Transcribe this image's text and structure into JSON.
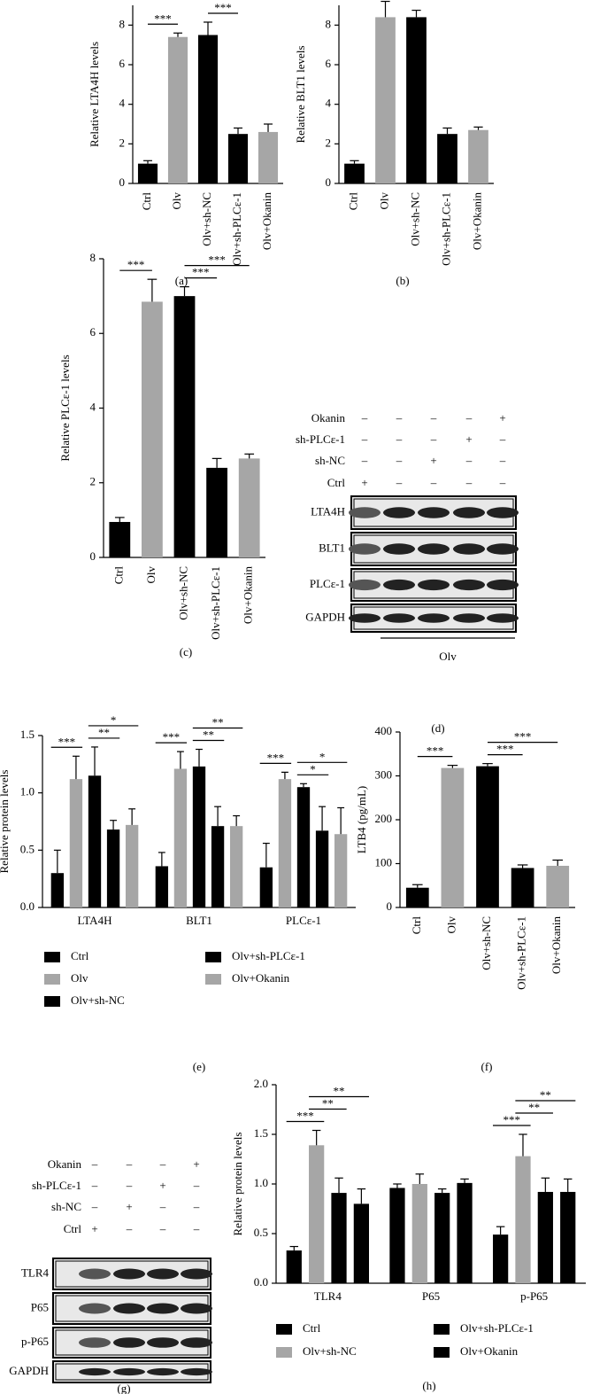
{
  "chart_data": [
    {
      "type": "bar",
      "panel": "(a)",
      "ylabel": "Relative LTA4H levels",
      "categories": [
        "Ctrl",
        "Olv",
        "Olv+sh-NC",
        "Olv+sh-PLCε-1",
        "Olv+Okanin"
      ],
      "values": [
        1.0,
        7.4,
        7.5,
        2.5,
        2.6
      ],
      "errors": [
        0.15,
        0.2,
        0.65,
        0.3,
        0.4
      ],
      "colors": [
        "#000000",
        "#a6a6a6",
        "#000000",
        "#000000",
        "#a6a6a6"
      ],
      "ylim": [
        0,
        9
      ],
      "yticks": [
        0,
        2,
        4,
        6,
        8
      ],
      "annotations": [
        {
          "text": "***",
          "between": [
            0,
            1
          ]
        },
        {
          "text": "***",
          "between": [
            2,
            3
          ]
        }
      ]
    },
    {
      "type": "bar",
      "panel": "(b)",
      "ylabel": "Relative BLT1 levels",
      "categories": [
        "Ctrl",
        "Olv",
        "Olv+sh-NC",
        "Olv+sh-PLCε-1",
        "Olv+Okanin"
      ],
      "values": [
        1.0,
        8.4,
        8.4,
        2.5,
        2.7
      ],
      "errors": [
        0.15,
        0.8,
        0.35,
        0.3,
        0.15
      ],
      "colors": [
        "#000000",
        "#a6a6a6",
        "#000000",
        "#000000",
        "#a6a6a6"
      ],
      "ylim": [
        0,
        9
      ],
      "yticks": [
        0,
        2,
        4,
        6,
        8
      ],
      "annotations": []
    },
    {
      "type": "bar",
      "panel": "(c)",
      "ylabel": "Relative PLCε-1 levels",
      "categories": [
        "Ctrl",
        "Olv",
        "Olv+sh-NC",
        "Olv+sh-PLCε-1",
        "Olv+Okanin"
      ],
      "values": [
        0.95,
        6.85,
        7.0,
        2.4,
        2.65
      ],
      "errors": [
        0.12,
        0.6,
        0.25,
        0.25,
        0.12
      ],
      "colors": [
        "#000000",
        "#a6a6a6",
        "#000000",
        "#000000",
        "#a6a6a6"
      ],
      "ylim": [
        0,
        8
      ],
      "yticks": [
        0,
        2,
        4,
        6,
        8
      ],
      "annotations": [
        {
          "text": "***",
          "between": [
            0,
            1
          ]
        },
        {
          "text": "***",
          "between": [
            2,
            3
          ]
        },
        {
          "text": "***",
          "between": [
            2,
            4
          ]
        }
      ]
    },
    {
      "type": "grouped_bar",
      "panel": "(e)",
      "ylabel": "Relative protein levels",
      "categories": [
        "LTA4H",
        "BLT1",
        "PLCε-1"
      ],
      "series": [
        {
          "name": "Ctrl",
          "color": "#000000",
          "values": [
            0.3,
            0.36,
            0.35
          ],
          "errors": [
            0.2,
            0.12,
            0.21
          ]
        },
        {
          "name": "Olv",
          "color": "#a6a6a6",
          "values": [
            1.12,
            1.21,
            1.12
          ],
          "errors": [
            0.2,
            0.15,
            0.06
          ]
        },
        {
          "name": "Olv+sh-NC",
          "color": "#000000",
          "values": [
            1.15,
            1.23,
            1.05
          ],
          "errors": [
            0.25,
            0.15,
            0.03
          ]
        },
        {
          "name": "Olv+sh-PLCε-1",
          "color": "#000000",
          "values": [
            0.68,
            0.71,
            0.67
          ],
          "errors": [
            0.08,
            0.17,
            0.21
          ]
        },
        {
          "name": "Olv+Okanin",
          "color": "#a6a6a6",
          "values": [
            0.72,
            0.71,
            0.64
          ],
          "errors": [
            0.14,
            0.09,
            0.23
          ]
        }
      ],
      "ylim": [
        0,
        1.5
      ],
      "yticks": [
        {
          "value": 0,
          "label": "0.0"
        },
        0.5,
        {
          "value": 1,
          "label": "1.0"
        },
        1.5
      ],
      "annotations": [
        {
          "text": "***",
          "group": 0,
          "between": [
            0,
            1
          ]
        },
        {
          "text": "**",
          "group": 0,
          "between": [
            2,
            3
          ]
        },
        {
          "text": "*",
          "group": 0,
          "between": [
            2,
            4
          ]
        },
        {
          "text": "***",
          "group": 1,
          "between": [
            0,
            1
          ]
        },
        {
          "text": "**",
          "group": 1,
          "between": [
            2,
            3
          ]
        },
        {
          "text": "**",
          "group": 1,
          "between": [
            2,
            4
          ]
        },
        {
          "text": "***",
          "group": 2,
          "between": [
            0,
            1
          ]
        },
        {
          "text": "*",
          "group": 2,
          "between": [
            2,
            3
          ]
        },
        {
          "text": "*",
          "group": 2,
          "between": [
            2,
            4
          ]
        }
      ]
    },
    {
      "type": "bar",
      "panel": "(f)",
      "ylabel": "LTB4 (pg/mL)",
      "categories": [
        "Ctrl",
        "Olv",
        "Olv+sh-NC",
        "Olv+sh-PLCε-1",
        "Olv+Okanin"
      ],
      "values": [
        45,
        318,
        322,
        90,
        95
      ],
      "errors": [
        7,
        6,
        6,
        7,
        13
      ],
      "colors": [
        "#000000",
        "#a6a6a6",
        "#000000",
        "#000000",
        "#a6a6a6"
      ],
      "ylim": [
        0,
        400
      ],
      "yticks": [
        0,
        100,
        200,
        300,
        400
      ],
      "annotations": [
        {
          "text": "***",
          "between": [
            0,
            1
          ]
        },
        {
          "text": "***",
          "between": [
            2,
            3
          ]
        },
        {
          "text": "***",
          "between": [
            2,
            4
          ]
        }
      ]
    },
    {
      "type": "grouped_bar",
      "panel": "(h)",
      "ylabel": "Relative protein levels",
      "categories": [
        "TLR4",
        "P65",
        "p-P65"
      ],
      "series": [
        {
          "name": "Ctrl",
          "color": "#000000",
          "values": [
            0.33,
            0.96,
            0.49
          ],
          "errors": [
            0.04,
            0.04,
            0.08
          ]
        },
        {
          "name": "Olv+sh-NC",
          "color": "#a6a6a6",
          "values": [
            1.39,
            1.0,
            1.28
          ],
          "errors": [
            0.15,
            0.1,
            0.22
          ]
        },
        {
          "name": "Olv+sh-PLCε-1",
          "color": "#000000",
          "values": [
            0.91,
            0.91,
            0.92
          ],
          "errors": [
            0.15,
            0.04,
            0.14
          ]
        },
        {
          "name": "Olv+Okanin",
          "color": "#000000",
          "values": [
            0.8,
            1.01,
            0.92
          ],
          "errors": [
            0.15,
            0.04,
            0.13
          ]
        }
      ],
      "ylim": [
        0,
        2
      ],
      "yticks": [
        {
          "value": 0,
          "label": "0.0"
        },
        0.5,
        {
          "value": 1,
          "label": "1.0"
        },
        1.5,
        {
          "value": 2,
          "label": "2.0"
        }
      ],
      "annotations": [
        {
          "text": "***",
          "group": 0,
          "between": [
            0,
            1
          ]
        },
        {
          "text": "**",
          "group": 0,
          "between": [
            1,
            2
          ]
        },
        {
          "text": "**",
          "group": 0,
          "between": [
            1,
            3
          ]
        },
        {
          "text": "***",
          "group": 2,
          "between": [
            0,
            1
          ]
        },
        {
          "text": "**",
          "group": 2,
          "between": [
            1,
            2
          ]
        },
        {
          "text": "**",
          "group": 2,
          "between": [
            1,
            3
          ]
        }
      ]
    }
  ],
  "blots": [
    {
      "panel": "(d)",
      "conditions": [
        "Okanin",
        "sh-PLCε-1",
        "sh-NC",
        "Ctrl"
      ],
      "signs": [
        [
          "–",
          "–",
          "–",
          "–",
          "+"
        ],
        [
          "–",
          "–",
          "–",
          "+",
          "–"
        ],
        [
          "–",
          "–",
          "+",
          "–",
          "–"
        ],
        [
          "+",
          "–",
          "–",
          "–",
          "–"
        ]
      ],
      "proteins": [
        "LTA4H",
        "BLT1",
        "PLCε-1",
        "GAPDH"
      ],
      "treatment": "Olv"
    },
    {
      "panel": "(g)",
      "conditions": [
        "Okanin",
        "sh-PLCε-1",
        "sh-NC",
        "Ctrl"
      ],
      "signs": [
        [
          "–",
          "–",
          "–",
          "+"
        ],
        [
          "–",
          "–",
          "+",
          "–"
        ],
        [
          "–",
          "+",
          "–",
          "–"
        ],
        [
          "+",
          "–",
          "–",
          "–"
        ]
      ],
      "proteins": [
        "TLR4",
        "P65",
        "p-P65",
        "GAPDH"
      ]
    }
  ]
}
